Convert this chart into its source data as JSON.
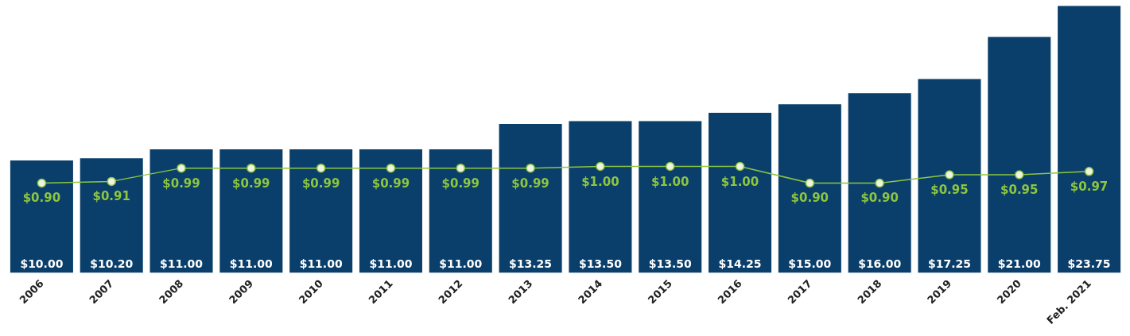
{
  "chart_data": {
    "type": "bar",
    "categories": [
      "2006",
      "2007",
      "2008",
      "2009",
      "2010",
      "2011",
      "2012",
      "2013",
      "2014",
      "2015",
      "2016",
      "2017",
      "2018",
      "2019",
      "2020",
      "Feb. 2021"
    ],
    "series": [
      {
        "color": "#0b3f6b",
        "values": [
          10.0,
          10.2,
          11.0,
          11.0,
          11.0,
          11.0,
          11.0,
          13.25,
          13.5,
          13.5,
          14.25,
          15.0,
          16.0,
          17.25,
          21.0,
          23.75
        ],
        "value_labels": [
          "$10.00",
          "$10.20",
          "$11.00",
          "$11.00",
          "$11.00",
          "$11.00",
          "$11.00",
          "$13.25",
          "$13.50",
          "$13.50",
          "$14.25",
          "$15.00",
          "$16.00",
          "$17.25",
          "$21.00",
          "$23.75"
        ]
      },
      {
        "type": "line",
        "axis": "y2",
        "color": "#8dc63f",
        "values": [
          0.9,
          0.91,
          0.99,
          0.99,
          0.99,
          0.99,
          0.99,
          0.99,
          1.0,
          1.0,
          1.0,
          0.9,
          0.9,
          0.95,
          0.95,
          0.97
        ],
        "value_labels": [
          "$0.90",
          "$0.91",
          "$0.99",
          "$0.99",
          "$0.99",
          "$0.99",
          "$0.99",
          "$0.99",
          "$1.00",
          "$1.00",
          "$1.00",
          "$0.90",
          "$0.90",
          "$0.95",
          "$0.95",
          "$0.97"
        ]
      }
    ],
    "marker": "circle",
    "line_style": "solid",
    "tick_labels": "x"
  }
}
